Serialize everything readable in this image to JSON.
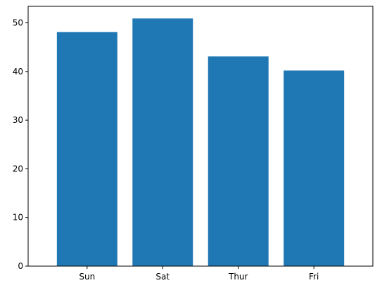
{
  "chart_data": {
    "type": "bar",
    "title": "",
    "xlabel": "",
    "ylabel": "",
    "categories": [
      "Sun",
      "Sat",
      "Thur",
      "Fri"
    ],
    "values": [
      48.1,
      50.9,
      43.1,
      40.2
    ],
    "ylim": [
      0,
      53.4
    ],
    "yticks": [
      0,
      10,
      20,
      30,
      40,
      50
    ],
    "grid": false,
    "bar_color": "#1f77b4"
  }
}
